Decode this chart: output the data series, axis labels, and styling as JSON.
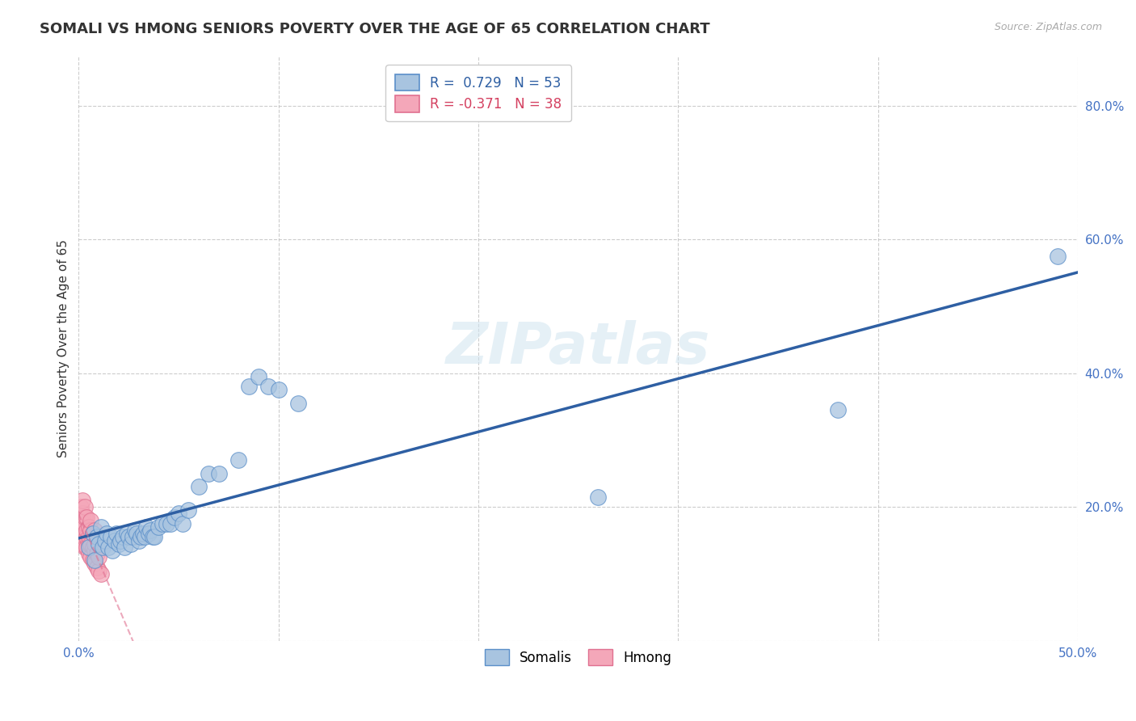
{
  "title": "SOMALI VS HMONG SENIORS POVERTY OVER THE AGE OF 65 CORRELATION CHART",
  "source": "Source: ZipAtlas.com",
  "ylabel": "Seniors Poverty Over the Age of 65",
  "xlim": [
    0.0,
    0.5
  ],
  "ylim": [
    0.0,
    0.875
  ],
  "xticks": [
    0.0,
    0.1,
    0.2,
    0.3,
    0.4,
    0.5
  ],
  "xticklabels": [
    "0.0%",
    "",
    "",
    "",
    "",
    "50.0%"
  ],
  "yticks": [
    0.0,
    0.2,
    0.4,
    0.6,
    0.8
  ],
  "yticklabels": [
    "",
    "20.0%",
    "40.0%",
    "60.0%",
    "80.0%"
  ],
  "somali_R": 0.729,
  "somali_N": 53,
  "hmong_R": -0.371,
  "hmong_N": 38,
  "somali_color": "#a8c4e0",
  "somali_edge_color": "#5b8fc9",
  "somali_line_color": "#2e5fa3",
  "hmong_color": "#f4a7b9",
  "hmong_edge_color": "#e07090",
  "hmong_line_color": "#e07090",
  "tick_color": "#4472c4",
  "background_color": "#ffffff",
  "watermark_text": "ZIPatlas",
  "somali_x": [
    0.005,
    0.007,
    0.008,
    0.009,
    0.01,
    0.011,
    0.012,
    0.013,
    0.014,
    0.015,
    0.016,
    0.017,
    0.018,
    0.019,
    0.02,
    0.021,
    0.022,
    0.023,
    0.024,
    0.025,
    0.026,
    0.027,
    0.028,
    0.029,
    0.03,
    0.031,
    0.032,
    0.033,
    0.034,
    0.035,
    0.036,
    0.037,
    0.038,
    0.04,
    0.042,
    0.044,
    0.046,
    0.048,
    0.05,
    0.052,
    0.055,
    0.06,
    0.065,
    0.07,
    0.08,
    0.085,
    0.09,
    0.095,
    0.1,
    0.11,
    0.26,
    0.38,
    0.49
  ],
  "somali_y": [
    0.14,
    0.16,
    0.12,
    0.155,
    0.145,
    0.17,
    0.14,
    0.15,
    0.16,
    0.14,
    0.155,
    0.135,
    0.15,
    0.16,
    0.145,
    0.15,
    0.155,
    0.14,
    0.16,
    0.155,
    0.145,
    0.155,
    0.165,
    0.16,
    0.15,
    0.155,
    0.16,
    0.155,
    0.17,
    0.16,
    0.165,
    0.155,
    0.155,
    0.17,
    0.175,
    0.175,
    0.175,
    0.185,
    0.19,
    0.175,
    0.195,
    0.23,
    0.25,
    0.25,
    0.27,
    0.38,
    0.395,
    0.38,
    0.375,
    0.355,
    0.215,
    0.345,
    0.575
  ],
  "hmong_x": [
    0.001,
    0.001,
    0.001,
    0.001,
    0.002,
    0.002,
    0.002,
    0.002,
    0.002,
    0.003,
    0.003,
    0.003,
    0.003,
    0.003,
    0.004,
    0.004,
    0.004,
    0.004,
    0.005,
    0.005,
    0.005,
    0.005,
    0.006,
    0.006,
    0.006,
    0.006,
    0.007,
    0.007,
    0.007,
    0.008,
    0.008,
    0.008,
    0.008,
    0.009,
    0.009,
    0.01,
    0.01,
    0.011
  ],
  "hmong_y": [
    0.15,
    0.17,
    0.18,
    0.2,
    0.145,
    0.165,
    0.17,
    0.19,
    0.21,
    0.14,
    0.16,
    0.175,
    0.185,
    0.2,
    0.14,
    0.155,
    0.165,
    0.185,
    0.13,
    0.145,
    0.155,
    0.17,
    0.125,
    0.145,
    0.165,
    0.18,
    0.12,
    0.14,
    0.16,
    0.115,
    0.135,
    0.145,
    0.165,
    0.11,
    0.13,
    0.105,
    0.125,
    0.1
  ],
  "title_fontsize": 13,
  "axis_fontsize": 11,
  "tick_fontsize": 11,
  "legend_fontsize": 12
}
